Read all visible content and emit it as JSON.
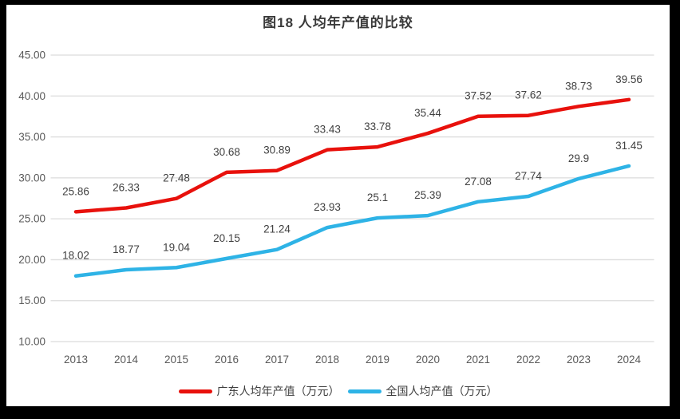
{
  "window": {
    "frame_color": "#000000",
    "canvas_background": "#ffffff"
  },
  "chart_data": {
    "type": "line",
    "title": "图18 人均年产值的比较",
    "categories": [
      "2013",
      "2014",
      "2015",
      "2016",
      "2017",
      "2018",
      "2019",
      "2020",
      "2021",
      "2022",
      "2023",
      "2024"
    ],
    "series": [
      {
        "name": "广东人均年产值（万元）",
        "color": "#e8110c",
        "values": [
          25.86,
          26.33,
          27.48,
          30.68,
          30.89,
          33.43,
          33.78,
          35.44,
          37.52,
          37.62,
          38.73,
          39.56
        ],
        "labels": [
          "25.86",
          "26.33",
          "27.48",
          "30.68",
          "30.89",
          "33.43",
          "33.78",
          "35.44",
          "37.52",
          "37.62",
          "38.73",
          "39.56"
        ]
      },
      {
        "name": "全国人均产值（万元）",
        "color": "#2eb3e6",
        "values": [
          18.02,
          18.77,
          19.04,
          20.15,
          21.24,
          23.93,
          25.1,
          25.39,
          27.08,
          27.74,
          29.9,
          31.45
        ],
        "labels": [
          "18.02",
          "18.77",
          "19.04",
          "20.15",
          "21.24",
          "23.93",
          "25.1",
          "25.39",
          "27.08",
          "27.74",
          "29.9",
          "31.45"
        ]
      }
    ],
    "ylim": [
      10,
      45
    ],
    "yticks": [
      {
        "value": 45,
        "label": "45.00"
      },
      {
        "value": 40,
        "label": "40.00"
      },
      {
        "value": 35,
        "label": "35.00"
      },
      {
        "value": 30,
        "label": "30.00"
      },
      {
        "value": 25,
        "label": "25.00"
      },
      {
        "value": 20,
        "label": "20.00"
      },
      {
        "value": 15,
        "label": "15.00"
      },
      {
        "value": 10,
        "label": "10.00"
      }
    ],
    "grid": true,
    "legend_position": "bottom",
    "data_labels": true
  },
  "colors": {
    "gridline": "#dcdcdc",
    "axis_text": "#595959",
    "data_label_text": "#404040",
    "title_text": "#3a3a3a"
  }
}
